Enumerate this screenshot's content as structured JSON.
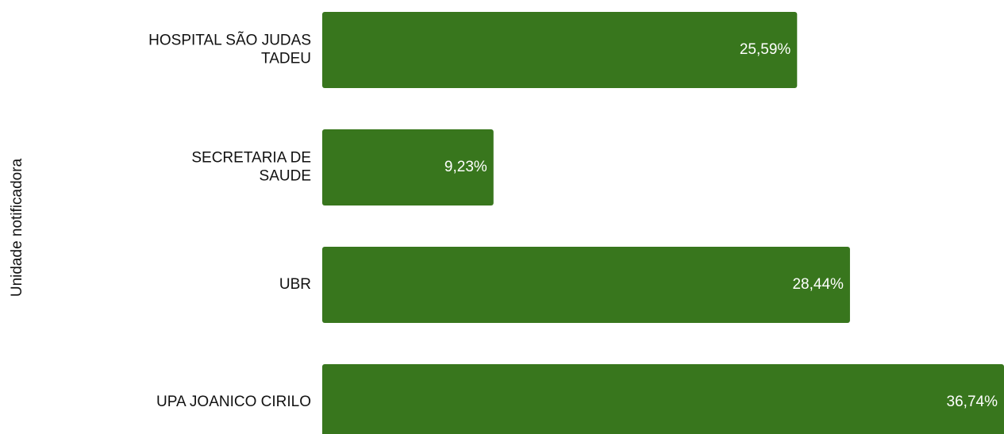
{
  "chart_data": {
    "type": "hbar",
    "y_label": "Unidade notificadora",
    "categories": [
      "HOSPITAL SÃO JUDAS TADEU",
      "SECRETARIA DE SAUDE",
      "UBR",
      "UPA JOANICO CIRILO"
    ],
    "values": [
      25.59,
      9.23,
      28.44,
      36.74
    ],
    "value_labels": [
      "25,59%",
      "9,23%",
      "28,44%",
      "36,74%"
    ],
    "color": "#38761d"
  }
}
